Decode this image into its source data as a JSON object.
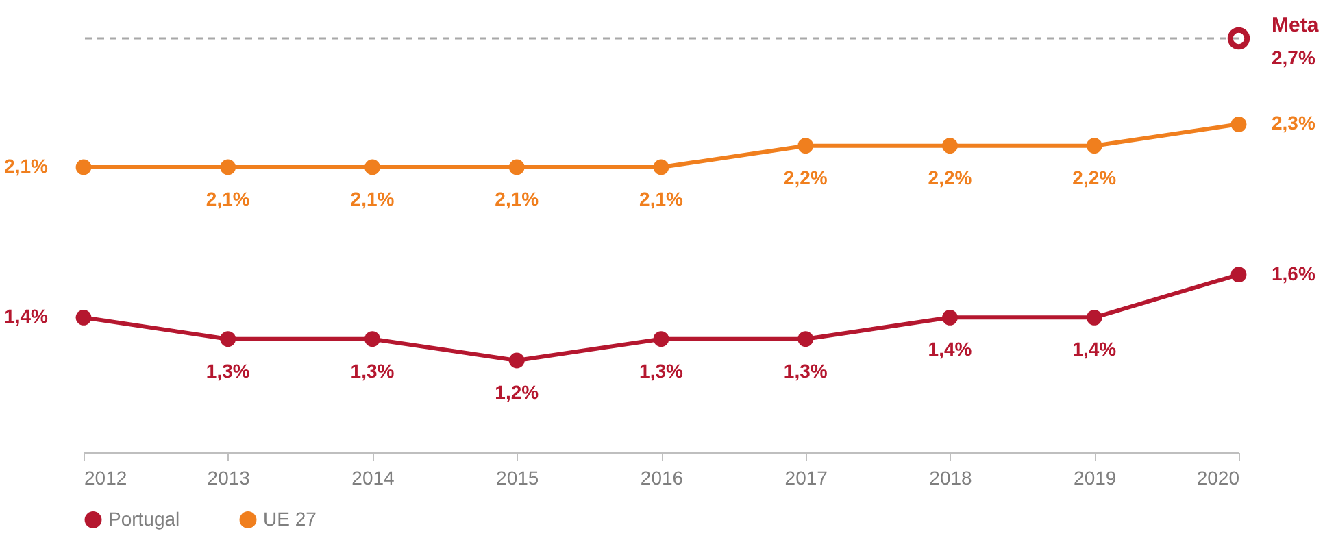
{
  "chart_data": {
    "type": "line",
    "categories": [
      "2012",
      "2013",
      "2014",
      "2015",
      "2016",
      "2017",
      "2018",
      "2019",
      "2020"
    ],
    "series": [
      {
        "name": "Portugal",
        "color": "#b5172f",
        "values": [
          1.4,
          1.3,
          1.3,
          1.2,
          1.3,
          1.3,
          1.4,
          1.4,
          1.6
        ],
        "value_labels": [
          "1,4%",
          "1,3%",
          "1,3%",
          "1,2%",
          "1,3%",
          "1,3%",
          "1,4%",
          "1,4%",
          "1,6%"
        ]
      },
      {
        "name": "UE 27",
        "color": "#f07f1e",
        "values": [
          2.1,
          2.1,
          2.1,
          2.1,
          2.1,
          2.2,
          2.2,
          2.2,
          2.3
        ],
        "value_labels": [
          "2,1%",
          "2,1%",
          "2,1%",
          "2,1%",
          "2,1%",
          "2,2%",
          "2,2%",
          "2,2%",
          "2,3%"
        ]
      }
    ],
    "ref_lines": [
      {
        "axis": "y",
        "value": 2.7,
        "label": "Meta",
        "color": "#a8a8a8",
        "line_style": "dashed"
      }
    ],
    "annotations": [
      {
        "text": "2,7%",
        "x": "2020",
        "y": 2.7
      }
    ],
    "legend": "bottom",
    "marker": "circle",
    "line_style": "solid"
  }
}
